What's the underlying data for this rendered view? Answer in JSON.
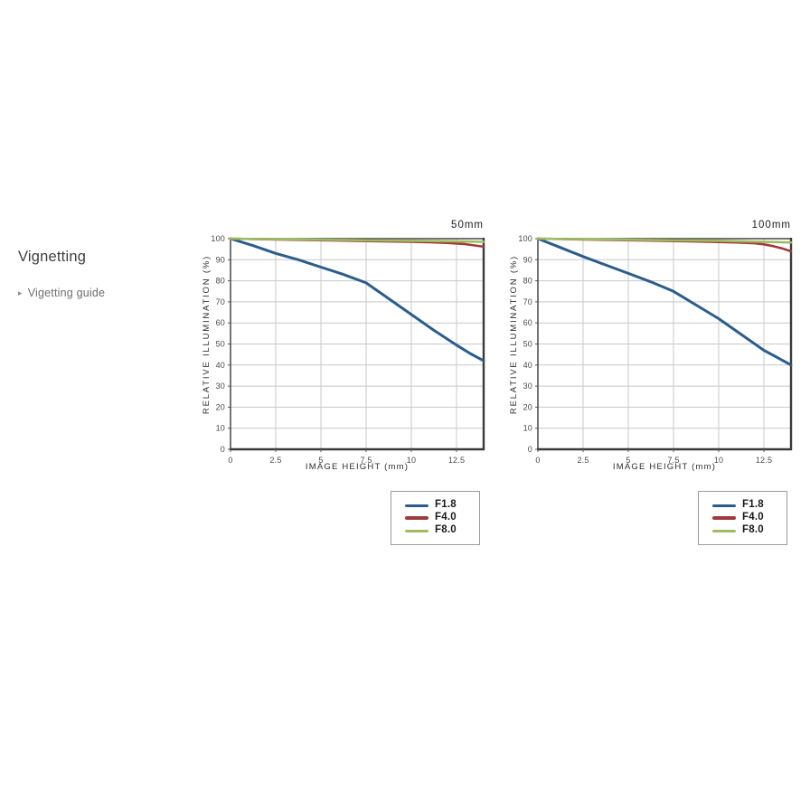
{
  "sidebar": {
    "heading": "Vignetting",
    "link_arrow": "▸",
    "link_label": "Vigetting guide"
  },
  "legend": {
    "items": [
      {
        "label": "F1.8",
        "color": "#2b5d8c"
      },
      {
        "label": "F4.0",
        "color": "#a13a3c"
      },
      {
        "label": "F8.0",
        "color": "#9fbc62"
      }
    ]
  },
  "colors": {
    "grid": "#c9c9c9",
    "plot_border": "#3a3a3a",
    "tick": "#555555"
  },
  "chart_data": [
    {
      "type": "line",
      "title": "50mm",
      "xlabel": "IMAGE HEIGHT (mm)",
      "ylabel": "RELATIVE ILLUMINATION (%)",
      "xlim": [
        0,
        14
      ],
      "ylim": [
        0,
        100
      ],
      "grid": true,
      "legend_position": "below-right",
      "x_tick_values": [
        0,
        2.5,
        5,
        7.5,
        10,
        12.5
      ],
      "x_tick_labels": [
        "0",
        "2.5",
        "5",
        "7.5",
        "10",
        "12.5"
      ],
      "y_tick_values": [
        0,
        10,
        20,
        30,
        40,
        50,
        60,
        70,
        80,
        90,
        100
      ],
      "series": [
        {
          "name": "F1.8",
          "color": "#2b5d8c",
          "x": [
            0,
            1.25,
            2.5,
            3.75,
            5,
            6.25,
            7.5,
            8.75,
            10,
            11.25,
            12.5,
            13.25,
            14
          ],
          "y": [
            100,
            96.7,
            93,
            90,
            86.5,
            83,
            79,
            71.5,
            64,
            56.5,
            49.5,
            45.5,
            42
          ]
        },
        {
          "name": "F4.0",
          "color": "#a13a3c",
          "x": [
            0,
            2,
            4,
            6,
            8,
            10,
            11,
            12,
            13,
            13.5,
            14
          ],
          "y": [
            100,
            99.7,
            99.4,
            99.1,
            98.8,
            98.5,
            98.3,
            98,
            97.4,
            96.8,
            96.2
          ]
        },
        {
          "name": "F8.0",
          "color": "#9fbc62",
          "x": [
            0,
            2,
            4,
            6,
            8,
            10,
            12,
            14
          ],
          "y": [
            100,
            99.8,
            99.6,
            99.4,
            99.2,
            99,
            98.8,
            98.5
          ]
        }
      ]
    },
    {
      "type": "line",
      "title": "100mm",
      "xlabel": "IMAGE HEIGHT (mm)",
      "ylabel": "RELATIVE ILLUMINATION (%)",
      "xlim": [
        0,
        14
      ],
      "ylim": [
        0,
        100
      ],
      "grid": true,
      "legend_position": "below-right",
      "x_tick_values": [
        0,
        2.5,
        5,
        7.5,
        10,
        12.5
      ],
      "x_tick_labels": [
        "0",
        "2.5",
        "5",
        "7.5",
        "10",
        "12.5"
      ],
      "y_tick_values": [
        0,
        10,
        20,
        30,
        40,
        50,
        60,
        70,
        80,
        90,
        100
      ],
      "series": [
        {
          "name": "F1.8",
          "color": "#2b5d8c",
          "x": [
            0,
            1.25,
            2.5,
            3.75,
            5,
            6.25,
            7.5,
            8.75,
            10,
            11.25,
            12.5,
            13.25,
            14
          ],
          "y": [
            100,
            95.8,
            91.5,
            87.5,
            83.5,
            79.5,
            75,
            68.5,
            62,
            54.5,
            47,
            43.5,
            40
          ]
        },
        {
          "name": "F4.0",
          "color": "#a13a3c",
          "x": [
            0,
            2,
            4,
            6,
            8,
            10,
            11,
            12,
            12.5,
            13,
            13.5,
            14
          ],
          "y": [
            100,
            99.7,
            99.4,
            99.1,
            98.8,
            98.4,
            98.2,
            97.8,
            97.3,
            96.5,
            95.4,
            94
          ]
        },
        {
          "name": "F8.0",
          "color": "#9fbc62",
          "x": [
            0,
            2,
            4,
            6,
            8,
            10,
            12,
            13,
            14
          ],
          "y": [
            100,
            99.8,
            99.6,
            99.4,
            99.2,
            99,
            98.6,
            98.4,
            98.2
          ]
        }
      ]
    }
  ]
}
